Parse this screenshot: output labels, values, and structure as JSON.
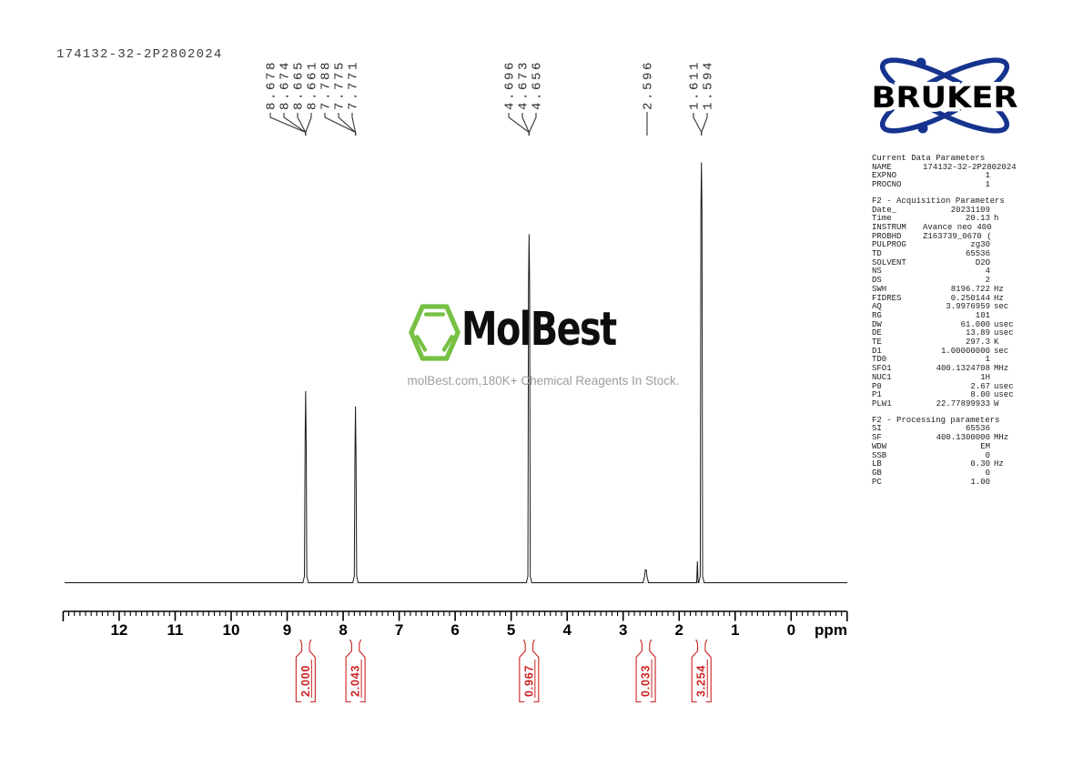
{
  "title": "174132-32-2P2802024",
  "watermark": {
    "brand": "MolBest",
    "tagline": "molBest.com,180K+ Chemical Reagents In Stock.",
    "green": "#76c043"
  },
  "bruker": {
    "label": "BRUKER",
    "blue": "#16338e"
  },
  "axis": {
    "unit_label": "ppm",
    "tick_labels": [
      "12",
      "11",
      "10",
      "9",
      "8",
      "7",
      "6",
      "5",
      "4",
      "3",
      "2",
      "1",
      "0"
    ],
    "range_ppm": [
      13.0,
      -1.0
    ]
  },
  "chart_data": {
    "type": "line",
    "title": "1H NMR spectrum 174132-32-2P2802024",
    "xlabel": "ppm",
    "x_range": [
      13.0,
      -1.0
    ],
    "grid": false,
    "trace_color": "#1a1a1a",
    "integral_color": "#cc2222",
    "peaks": [
      {
        "ppm_labels": [
          "8.678",
          "8.674",
          "8.665",
          "8.661"
        ],
        "center_ppm": 8.67,
        "rel_height": 0.456,
        "integral": "2.000"
      },
      {
        "ppm_labels": [
          "7.788",
          "7.775",
          "7.771"
        ],
        "center_ppm": 7.78,
        "rel_height": 0.419,
        "integral": "2.043"
      },
      {
        "ppm_labels": [
          "4.696",
          "4.673",
          "4.656"
        ],
        "center_ppm": 4.68,
        "rel_height": 0.829,
        "integral": "0.967"
      },
      {
        "ppm_labels": [
          "2.596"
        ],
        "center_ppm": 2.596,
        "rel_height": 0.03,
        "integral": "0.033"
      },
      {
        "ppm_labels": [
          "1.611",
          "1.594"
        ],
        "center_ppm": 1.602,
        "rel_height": 1.0,
        "integral": "3.254"
      }
    ]
  },
  "parameters": {
    "sections": [
      {
        "header": "Current Data Parameters",
        "rows": [
          [
            "NAME",
            "174132-32-2P2802024",
            ""
          ],
          [
            "EXPNO",
            "1",
            ""
          ],
          [
            "PROCNO",
            "1",
            ""
          ]
        ]
      },
      {
        "header": "F2 - Acquisition Parameters",
        "rows": [
          [
            "Date_",
            "20231109",
            ""
          ],
          [
            "Time",
            "20.13",
            "h"
          ],
          [
            "INSTRUM",
            "Avance neo 400",
            ""
          ],
          [
            "PROBHD",
            "Z163739_0670 (",
            ""
          ],
          [
            "PULPROG",
            "zg30",
            ""
          ],
          [
            "TD",
            "65536",
            ""
          ],
          [
            "SOLVENT",
            "D2O",
            ""
          ],
          [
            "NS",
            "4",
            ""
          ],
          [
            "DS",
            "2",
            ""
          ],
          [
            "SWH",
            "8196.722",
            "Hz"
          ],
          [
            "FIDRES",
            "0.250144",
            "Hz"
          ],
          [
            "AQ",
            "3.9976959",
            "sec"
          ],
          [
            "RG",
            "101",
            ""
          ],
          [
            "DW",
            "61.000",
            "usec"
          ],
          [
            "DE",
            "13.89",
            "usec"
          ],
          [
            "TE",
            "297.3",
            "K"
          ],
          [
            "D1",
            "1.00000000",
            "sec"
          ],
          [
            "TD0",
            "1",
            ""
          ],
          [
            "SFO1",
            "400.1324708",
            "MHz"
          ],
          [
            "NUC1",
            "1H",
            ""
          ],
          [
            "P0",
            "2.67",
            "usec"
          ],
          [
            "P1",
            "8.00",
            "usec"
          ],
          [
            "PLW1",
            "22.77899933",
            "W"
          ]
        ]
      },
      {
        "header": "F2 - Processing parameters",
        "rows": [
          [
            "SI",
            "65536",
            ""
          ],
          [
            "SF",
            "400.1300000",
            "MHz"
          ],
          [
            "WDW",
            "EM",
            ""
          ],
          [
            "SSB",
            "0",
            ""
          ],
          [
            "LB",
            "0.30",
            "Hz"
          ],
          [
            "GB",
            "0",
            ""
          ],
          [
            "PC",
            "1.00",
            ""
          ]
        ]
      }
    ]
  }
}
